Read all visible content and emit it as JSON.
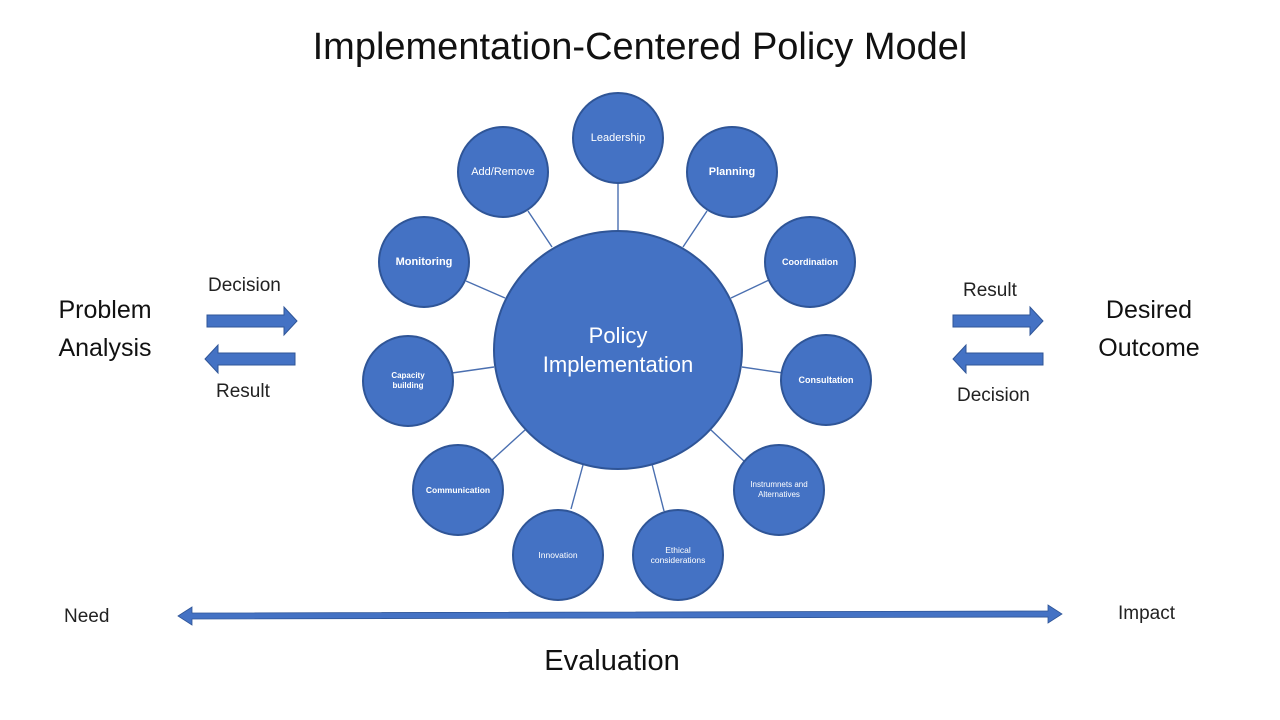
{
  "title": "Implementation-Centered Policy Model",
  "center_label": "Policy\nImplementation",
  "nodes": {
    "leadership": "Leadership",
    "planning": "Planning",
    "coordination": "Coordination",
    "consultation": "Consultation",
    "instruments": "Instrumnets and\nAlternatives",
    "ethical": "Ethical\nconsiderations",
    "innovation": "Innovation",
    "communication": "Communication",
    "capacity": "Capacity\nbuilding",
    "monitoring": "Monitoring",
    "addremove": "Add/Remove"
  },
  "left": {
    "heading": "Problem\nAnalysis",
    "arrow_top_label": "Decision",
    "arrow_bottom_label": "Result"
  },
  "right": {
    "heading": "Desired\nOutcome",
    "arrow_top_label": "Result",
    "arrow_bottom_label": "Decision"
  },
  "bottom": {
    "left_label": "Need",
    "right_label": "Impact",
    "caption": "Evaluation"
  },
  "colors": {
    "node_fill": "#4472c4",
    "node_border": "#2f5597",
    "connector": "#4a6fb0"
  }
}
